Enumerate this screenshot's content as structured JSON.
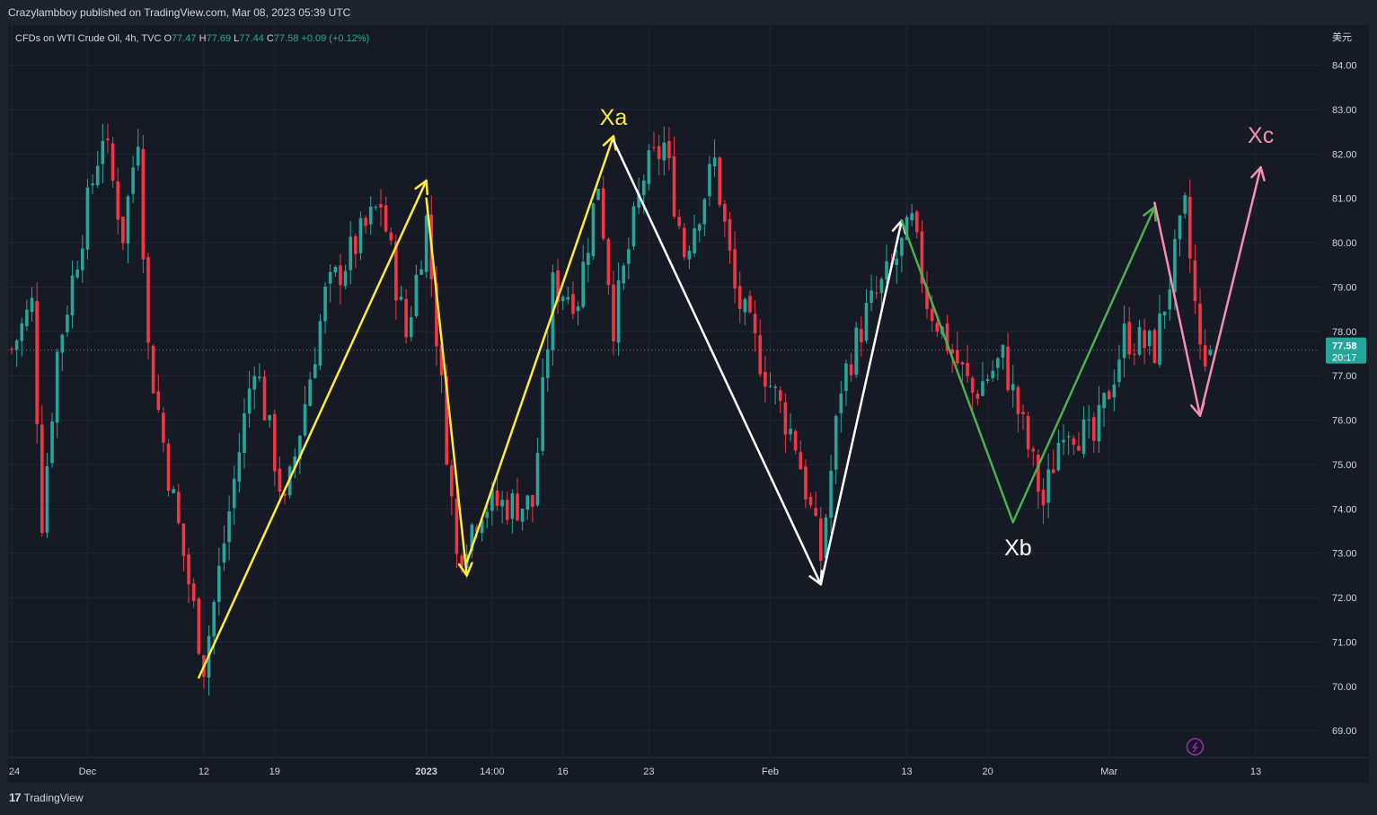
{
  "header": {
    "published": "Crazylambboy published on TradingView.com, Mar 08, 2023 05:39 UTC"
  },
  "legend": {
    "symbol": "CFDs on WTI Crude Oil, 4h, TVC",
    "o_label": "O",
    "o_value": "77.47",
    "h_label": "H",
    "h_value": "77.69",
    "l_label": "L",
    "l_value": "77.44",
    "c_label": "C",
    "c_value": "77.58",
    "change": "+0.09 (+0.12%)"
  },
  "footer": {
    "brand": "TradingView"
  },
  "colors": {
    "up": "#26a69a",
    "down": "#f23645",
    "yellow": "#ffeb3b",
    "white": "#ffffff",
    "green": "#4caf50",
    "pink": "#f48fb1",
    "purple": "#9c27b0",
    "background": "#161a25"
  },
  "chart_data": {
    "type": "candlestick",
    "timeframe": "4h",
    "currency": "美元",
    "ylim": [
      68.6,
      84.7
    ],
    "y_ticks": [
      "84.00",
      "83.00",
      "82.00",
      "81.00",
      "80.00",
      "79.00",
      "78.00",
      "77.00",
      "76.00",
      "75.00",
      "74.00",
      "73.00",
      "72.00",
      "71.00",
      "70.00",
      "69.00"
    ],
    "x_ticks": [
      {
        "label": "24",
        "i": 0
      },
      {
        "label": "Dec",
        "i": 15
      },
      {
        "label": "12",
        "i": 38
      },
      {
        "label": "19",
        "i": 52
      },
      {
        "label": "2023",
        "i": 82
      },
      {
        "label": "14:00",
        "i": 95
      },
      {
        "label": "16",
        "i": 109
      },
      {
        "label": "23",
        "i": 126
      },
      {
        "label": "Feb",
        "i": 150
      },
      {
        "label": "13",
        "i": 177
      },
      {
        "label": "20",
        "i": 193
      },
      {
        "label": "Mar",
        "i": 217
      },
      {
        "label": "13",
        "i": 246
      }
    ],
    "last_price": "77.58",
    "countdown": "20:17",
    "waypoints": [
      [
        0,
        77.6
      ],
      [
        4,
        78.6
      ],
      [
        6,
        73.8
      ],
      [
        9,
        77.5
      ],
      [
        18,
        82.5
      ],
      [
        22,
        80.2
      ],
      [
        25,
        82.5
      ],
      [
        27,
        77.6
      ],
      [
        31,
        74.8
      ],
      [
        38,
        70.5
      ],
      [
        48,
        77.4
      ],
      [
        54,
        74.0
      ],
      [
        62,
        78.8
      ],
      [
        73,
        80.9
      ],
      [
        78,
        77.9
      ],
      [
        82,
        80.5
      ],
      [
        88,
        72.9
      ],
      [
        93,
        74.1
      ],
      [
        103,
        74.1
      ],
      [
        107,
        79.0
      ],
      [
        112,
        78.8
      ],
      [
        116,
        81.4
      ],
      [
        119,
        78.2
      ],
      [
        125,
        81.5
      ],
      [
        129,
        82.2
      ],
      [
        133,
        79.8
      ],
      [
        139,
        81.8
      ],
      [
        143,
        78.9
      ],
      [
        150,
        76.8
      ],
      [
        155,
        75.5
      ],
      [
        160,
        72.9
      ],
      [
        164,
        76.8
      ],
      [
        169,
        78.4
      ],
      [
        174,
        79.4
      ],
      [
        178,
        80.4
      ],
      [
        181,
        78.7
      ],
      [
        190,
        76.6
      ],
      [
        196,
        77.4
      ],
      [
        200,
        75.8
      ],
      [
        204,
        74.1
      ],
      [
        208,
        76.0
      ],
      [
        214,
        75.5
      ],
      [
        220,
        77.9
      ],
      [
        226,
        77.6
      ],
      [
        232,
        80.7
      ],
      [
        235,
        77.5
      ],
      [
        237,
        77.58
      ]
    ],
    "annotations": [
      {
        "label": "",
        "color": "yellow",
        "from": [
          37,
          70.2
        ],
        "to": [
          82,
          81.4
        ],
        "arrow": true
      },
      {
        "label": "",
        "color": "yellow",
        "from": [
          82,
          81.0
        ],
        "to": [
          90,
          72.5
        ],
        "arrow": true
      },
      {
        "label": "",
        "color": "yellow",
        "from": [
          90,
          72.8
        ],
        "to": [
          119,
          82.4
        ],
        "arrow": true
      },
      {
        "label": "",
        "color": "white",
        "from": [
          119,
          82.3
        ],
        "to": [
          160,
          72.3
        ],
        "arrow": true
      },
      {
        "label": "",
        "color": "white",
        "from": [
          160,
          72.3
        ],
        "to": [
          176,
          80.5
        ],
        "arrow": true
      },
      {
        "label": "",
        "color": "green",
        "from": [
          176,
          80.5
        ],
        "to": [
          198,
          73.7
        ],
        "arrow": false
      },
      {
        "label": "",
        "color": "green",
        "from": [
          198,
          73.7
        ],
        "to": [
          226,
          80.8
        ],
        "arrow": true
      },
      {
        "label": "",
        "color": "pink",
        "from": [
          226,
          80.9
        ],
        "to": [
          235,
          76.1
        ],
        "arrow": true
      },
      {
        "label": "",
        "color": "pink",
        "from": [
          235,
          76.1
        ],
        "to": [
          247,
          81.7
        ],
        "arrow": true
      }
    ],
    "labels": [
      {
        "text": "Xa",
        "color": "yellow",
        "i": 119,
        "y": 82.65
      },
      {
        "text": "Xb",
        "color": "white",
        "i": 199,
        "y": 72.95
      },
      {
        "text": "Xc",
        "color": "pink",
        "i": 247,
        "y": 82.25
      }
    ]
  }
}
